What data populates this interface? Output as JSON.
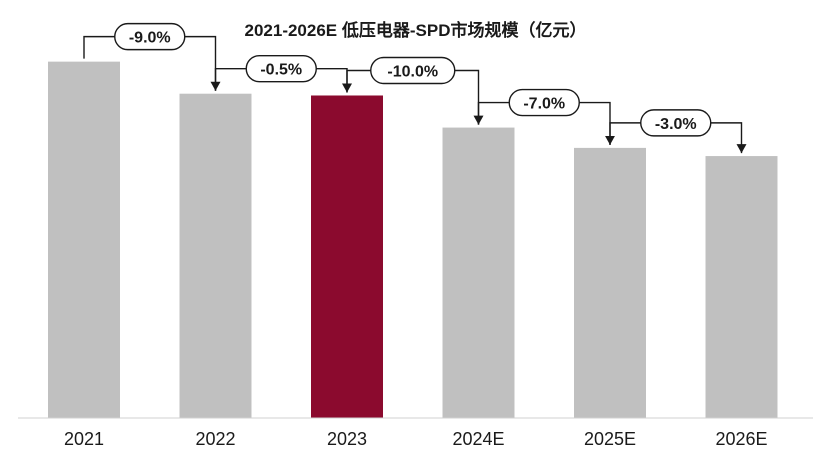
{
  "chart_data": {
    "type": "bar",
    "title": "2021-2026E 低压电器-SPD市场规模（亿元）",
    "xlabel": "",
    "ylabel": "",
    "categories": [
      "2021",
      "2022",
      "2023",
      "2024E",
      "2025E",
      "2026E"
    ],
    "values": [
      100,
      91.0,
      90.5,
      81.5,
      75.8,
      73.5
    ],
    "ylim": [
      0,
      110
    ],
    "growth_labels": [
      "-9.0%",
      "-0.5%",
      "-10.0%",
      "-7.0%",
      "-3.0%"
    ],
    "highlight_category": "2023",
    "grid": false,
    "legend": "none"
  },
  "colors": {
    "bar": "#c0c0c0",
    "highlight_bar": "#8b0a2e",
    "arrow": "#1a1a1a",
    "label_border": "#1a1a1a",
    "axis": "#d0d0d0"
  }
}
